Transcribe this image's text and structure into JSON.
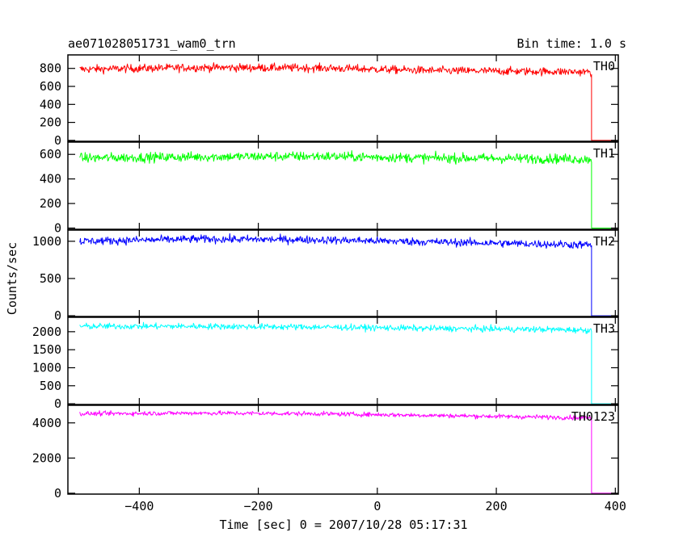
{
  "header": {
    "title": "ae071028051731_wam0_trn",
    "bin_time": "Bin time: 1.0 s"
  },
  "chart_data": {
    "type": "line",
    "title": "ae071028051731_wam0_trn",
    "xlabel": "Time [sec] 0 = 2007/10/28 05:17:31",
    "ylabel": "Counts/sec",
    "xlim": [
      -520,
      405
    ],
    "x_ticks": [
      -400,
      -200,
      0,
      200,
      400
    ],
    "x_tick_labels": [
      "−400",
      "−200",
      "0",
      "200",
      "400"
    ],
    "data_range": [
      -500,
      400
    ],
    "cutoff_x": 360,
    "grid": false,
    "panels": [
      {
        "name": "TH0",
        "color": "#ff0000",
        "ylim": [
          -10,
          950
        ],
        "yticks": [
          0,
          200,
          400,
          600,
          800
        ],
        "ytick_labels": [
          "0",
          "200",
          "400",
          "600",
          "800"
        ],
        "trend": {
          "x": [
            -500,
            -300,
            -100,
            100,
            300,
            358
          ],
          "y": [
            790,
            810,
            805,
            775,
            765,
            760
          ]
        },
        "noise": 32,
        "after_cutoff": 0
      },
      {
        "name": "TH1",
        "color": "#00ff00",
        "ylim": [
          -10,
          700
        ],
        "yticks": [
          0,
          200,
          400,
          600
        ],
        "ytick_labels": [
          "0",
          "200",
          "400",
          "600"
        ],
        "trend": {
          "x": [
            -500,
            -300,
            -100,
            100,
            300,
            358
          ],
          "y": [
            570,
            580,
            585,
            570,
            565,
            560
          ]
        },
        "noise": 28,
        "after_cutoff": 0
      },
      {
        "name": "TH2",
        "color": "#0000ff",
        "ylim": [
          -10,
          1150
        ],
        "yticks": [
          0,
          500,
          1000
        ],
        "ytick_labels": [
          "0",
          "500",
          "1000"
        ],
        "trend": {
          "x": [
            -500,
            -300,
            -100,
            100,
            300,
            358
          ],
          "y": [
            1000,
            1030,
            1020,
            990,
            960,
            950
          ]
        },
        "noise": 38,
        "after_cutoff": 0
      },
      {
        "name": "TH3",
        "color": "#00ffff",
        "ylim": [
          -20,
          2400
        ],
        "yticks": [
          0,
          500,
          1000,
          1500,
          2000
        ],
        "ytick_labels": [
          "0",
          "500",
          "1000",
          "1500",
          "2000"
        ],
        "trend": {
          "x": [
            -500,
            -300,
            -100,
            100,
            300,
            358
          ],
          "y": [
            2150,
            2150,
            2130,
            2090,
            2060,
            2040
          ]
        },
        "noise": 60,
        "after_cutoff": 0
      },
      {
        "name": "TH0123",
        "color": "#ff00ff",
        "ylim": [
          -50,
          5000
        ],
        "yticks": [
          0,
          2000,
          4000
        ],
        "ytick_labels": [
          "0",
          "2000",
          "4000"
        ],
        "trend": {
          "x": [
            -500,
            -300,
            -100,
            100,
            300,
            358
          ],
          "y": [
            4520,
            4560,
            4520,
            4420,
            4320,
            4280
          ]
        },
        "noise": 90,
        "after_cutoff": 0
      }
    ]
  }
}
